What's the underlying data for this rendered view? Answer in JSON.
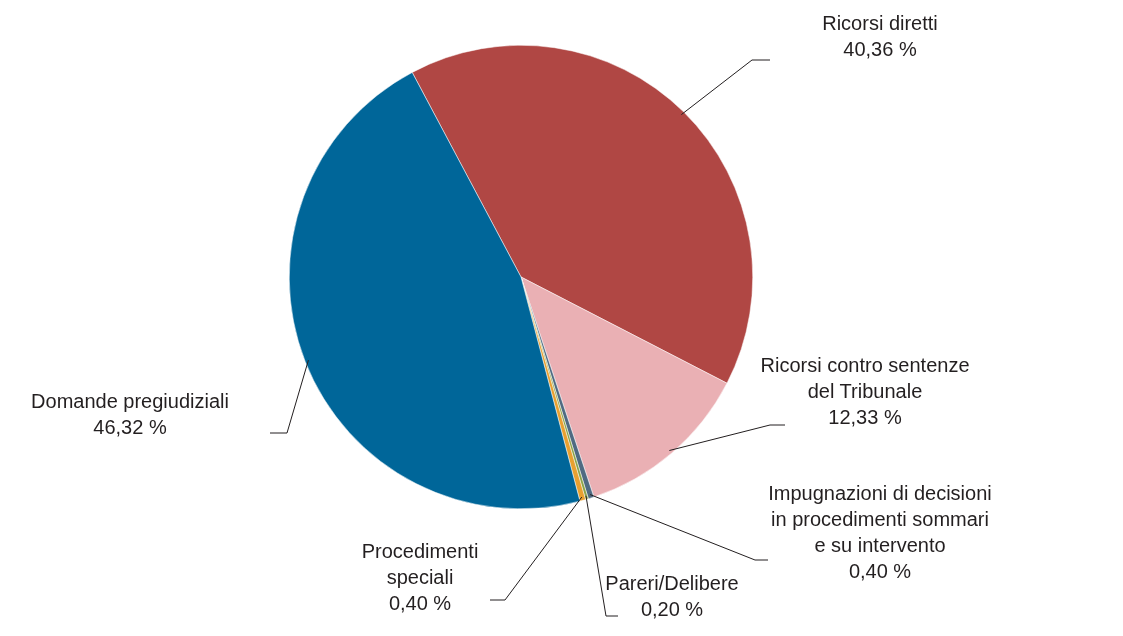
{
  "chart_data": {
    "type": "pie",
    "categories": [
      "Ricorsi diretti",
      "Ricorsi contro sentenze del Tribunale",
      "Impugnazioni di decisioni in procedimenti sommari e su intervento",
      "Pareri/Delibere",
      "Procedimenti speciali",
      "Domande pregiudiziali"
    ],
    "values": [
      40.36,
      12.33,
      0.4,
      0.2,
      0.4,
      46.32
    ],
    "colors": [
      "#b04744",
      "#eab0b4",
      "#4f6a82",
      "#8aa34a",
      "#e8a030",
      "#006699"
    ],
    "value_labels": [
      "40,36 %",
      "12,33 %",
      "0,40 %",
      "0,20 %",
      "0,40 %",
      "46,32 %"
    ],
    "legend": false
  }
}
